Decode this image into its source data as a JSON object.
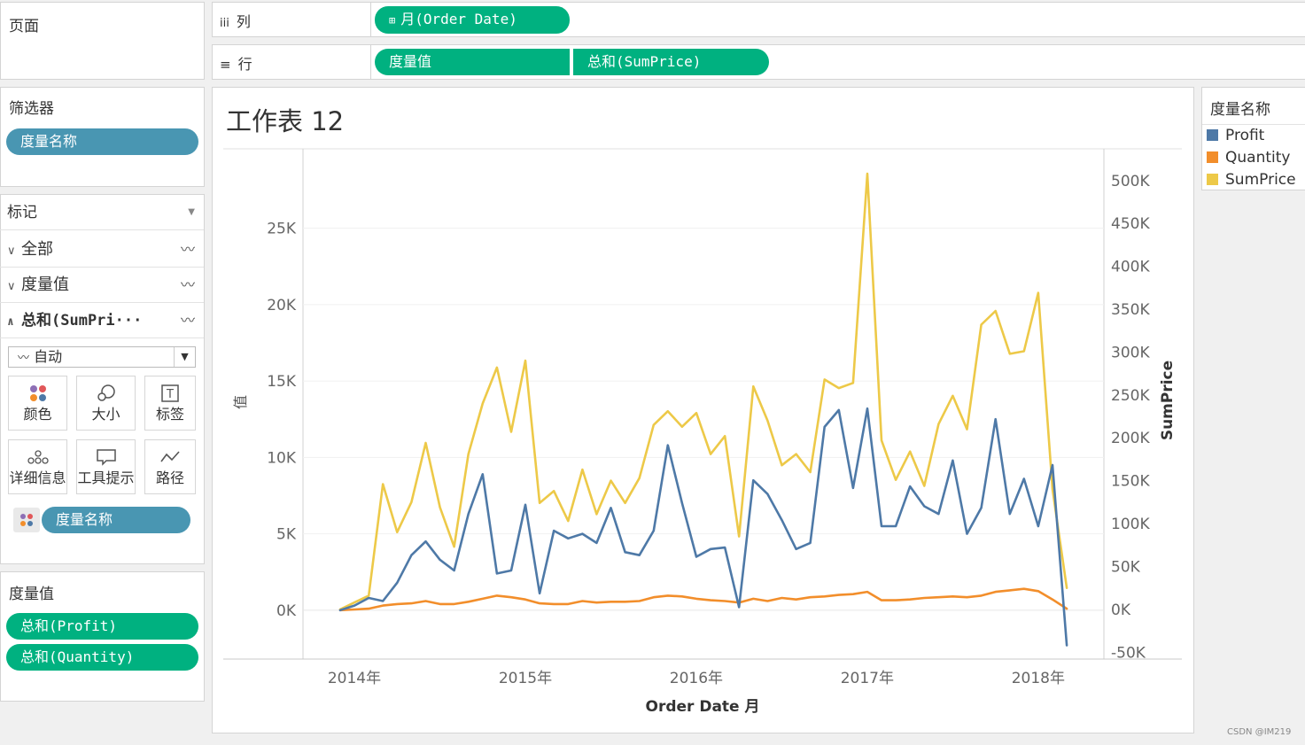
{
  "pages": {
    "title": "页面"
  },
  "columns_shelf": {
    "icon": "iii",
    "label": "列",
    "pill": "月(Order Date)"
  },
  "rows_shelf": {
    "icon": "≡",
    "label": "行",
    "pills": [
      "度量值",
      "总和(SumPrice)"
    ]
  },
  "filters": {
    "title": "筛选器",
    "pill": "度量名称"
  },
  "marks": {
    "title": "标记",
    "rows": [
      {
        "chev": "∨",
        "label": "全部"
      },
      {
        "chev": "∨",
        "label": "度量值"
      },
      {
        "chev": "∧",
        "label": "总和(SumPri···"
      }
    ],
    "type_select": "自动",
    "buttons": [
      "颜色",
      "大小",
      "标签",
      "详细信息",
      "工具提示",
      "路径"
    ],
    "color_pill": "度量名称"
  },
  "measure_values": {
    "title": "度量值",
    "pills": [
      "总和(Profit)",
      "总和(Quantity)"
    ]
  },
  "sheet": {
    "title": "工作表 12"
  },
  "legend": {
    "title": "度量名称",
    "items": [
      {
        "label": "Profit",
        "color": "#4e79a7"
      },
      {
        "label": "Quantity",
        "color": "#f28e2b"
      },
      {
        "label": "SumPrice",
        "color": "#edc948"
      }
    ]
  },
  "watermark": "CSDN @IM219",
  "chart_data": {
    "type": "line",
    "title": "工作表 12",
    "xlabel": "Order Date 月",
    "ylabel_left": "值",
    "ylabel_right": "SumPrice",
    "x_ticks": [
      "2014年",
      "2015年",
      "2016年",
      "2017年",
      "2018年"
    ],
    "y_left_ticks": [
      "0K",
      "5K",
      "10K",
      "15K",
      "20K",
      "25K"
    ],
    "y_right_ticks": [
      "-50K",
      "0K",
      "50K",
      "100K",
      "150K",
      "200K",
      "250K",
      "300K",
      "350K",
      "400K",
      "450K",
      "500K"
    ],
    "y_left_range": [
      -3200,
      30200
    ],
    "y_right_range": [
      -58000,
      537000
    ],
    "x_start": "2014-01",
    "x_count": 52,
    "series": [
      {
        "name": "Profit",
        "axis": "left",
        "color": "#4e79a7",
        "values": [
          0,
          300,
          800,
          600,
          1800,
          3600,
          4500,
          3300,
          2600,
          6300,
          8900,
          2400,
          2600,
          6900,
          1100,
          5200,
          4700,
          5000,
          4400,
          6700,
          3800,
          3600,
          5200,
          10800,
          7000,
          3500,
          4000,
          4100,
          200,
          8500,
          7600,
          5900,
          4000,
          4400,
          12000,
          13100,
          8000,
          13200,
          5500,
          5500,
          8100,
          6800,
          6300,
          9800,
          5000,
          6700,
          12500,
          6300,
          8600,
          5500,
          9500,
          -2300
        ]
      },
      {
        "name": "Quantity",
        "axis": "left",
        "color": "#f28e2b",
        "values": [
          0,
          50,
          100,
          300,
          400,
          450,
          600,
          400,
          400,
          550,
          750,
          950,
          850,
          700,
          450,
          400,
          400,
          600,
          500,
          550,
          550,
          600,
          850,
          950,
          900,
          750,
          650,
          600,
          500,
          750,
          600,
          800,
          700,
          850,
          900,
          1000,
          1050,
          1200,
          650,
          650,
          700,
          800,
          850,
          900,
          850,
          950,
          1200,
          1300,
          1400,
          1250,
          700,
          100
        ]
      },
      {
        "name": "SumPrice",
        "axis": "right",
        "color": "#edc948",
        "values": [
          0,
          8000,
          16000,
          146000,
          90000,
          125000,
          194000,
          119000,
          73000,
          181000,
          240000,
          282000,
          207000,
          290000,
          124000,
          138000,
          103000,
          163000,
          111000,
          150000,
          124000,
          153000,
          215000,
          231000,
          213000,
          229000,
          181000,
          202000,
          85000,
          260000,
          220000,
          168000,
          181000,
          160000,
          268000,
          258000,
          264000,
          508000,
          197000,
          151000,
          184000,
          144000,
          216000,
          249000,
          210000,
          332000,
          348000,
          298000,
          301000,
          369000,
          140000,
          25000
        ]
      }
    ]
  }
}
